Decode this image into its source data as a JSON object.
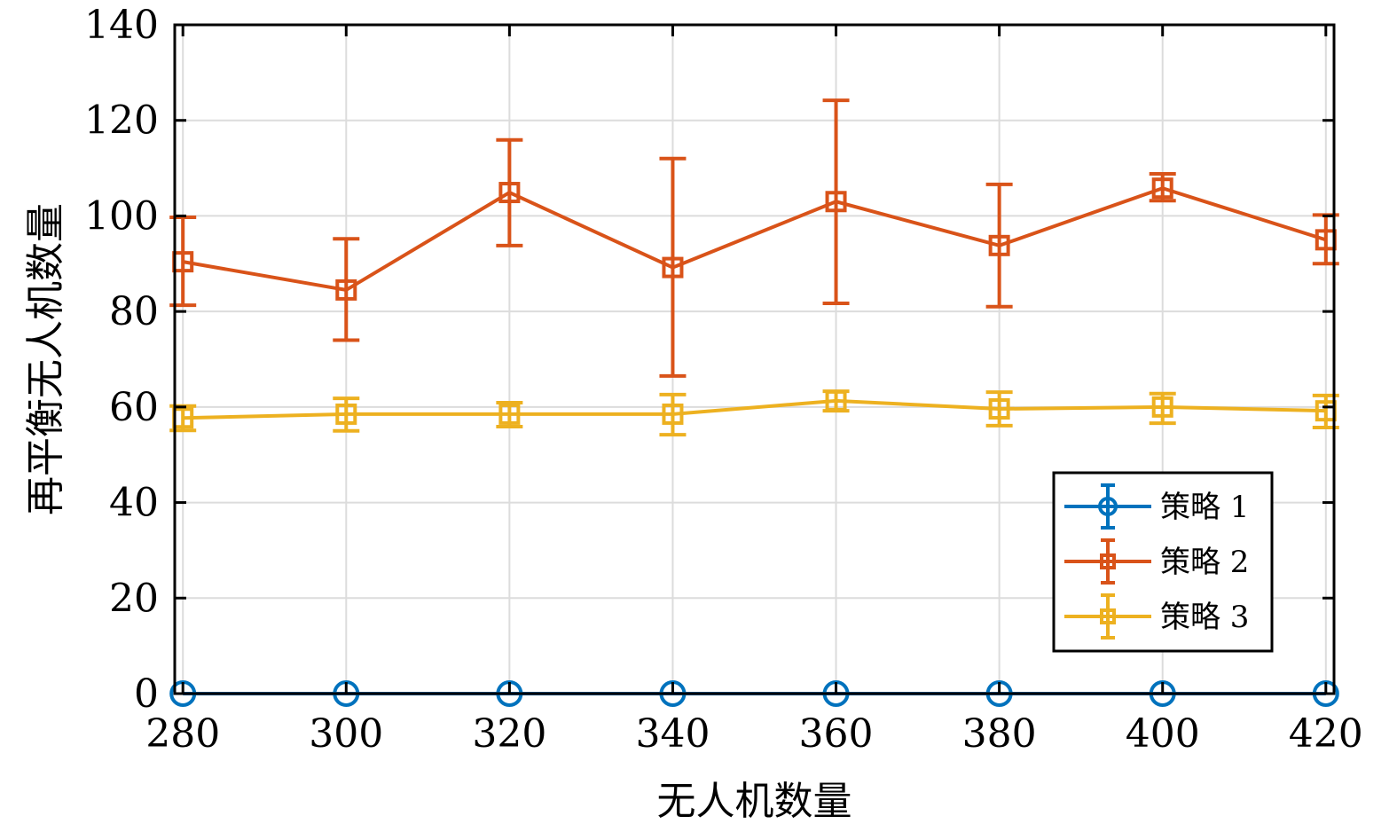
{
  "chart_data": {
    "type": "line",
    "subtype": "errorbar",
    "title": "",
    "xlabel": "无人机数量",
    "ylabel": "再平衡无人机数量",
    "xlim": [
      279,
      421
    ],
    "ylim": [
      0,
      140
    ],
    "grid": true,
    "x": [
      280,
      300,
      320,
      340,
      360,
      380,
      400,
      420
    ],
    "xticks": [
      280,
      300,
      320,
      340,
      360,
      380,
      400,
      420
    ],
    "xtick_labels": [
      "280",
      "300",
      "320",
      "340",
      "360",
      "380",
      "400",
      "420"
    ],
    "yticks": [
      0,
      20,
      40,
      60,
      80,
      100,
      120,
      140
    ],
    "ytick_labels": [
      "0",
      "20",
      "40",
      "60",
      "80",
      "100",
      "120",
      "140"
    ],
    "legend_position": "bottom-right",
    "series": [
      {
        "name": "策略 1",
        "color": "#0072BD",
        "marker": "circle",
        "values": [
          0,
          0,
          0,
          0,
          0,
          0,
          0,
          0
        ],
        "lower": [
          0,
          0,
          0,
          0,
          0,
          0,
          0,
          0
        ],
        "upper": [
          0,
          0,
          0,
          0,
          0,
          0,
          0,
          0
        ]
      },
      {
        "name": "策略 2",
        "color": "#D95319",
        "marker": "square",
        "values": [
          90.4,
          84.5,
          104.9,
          89.2,
          103.0,
          93.8,
          105.8,
          95.0
        ],
        "lower": [
          81.3,
          74.0,
          93.8,
          66.5,
          81.7,
          81.0,
          103.2,
          90.0
        ],
        "upper": [
          99.7,
          95.2,
          115.9,
          112.0,
          124.2,
          106.6,
          108.8,
          100.2
        ]
      },
      {
        "name": "策略 3",
        "color": "#EDB120",
        "marker": "square",
        "values": [
          57.7,
          58.5,
          58.5,
          58.5,
          61.3,
          59.6,
          60.0,
          59.2
        ],
        "lower": [
          55.1,
          55.0,
          55.9,
          54.2,
          59.2,
          56.1,
          56.6,
          55.7
        ],
        "upper": [
          60.2,
          61.8,
          60.9,
          62.6,
          63.3,
          63.1,
          62.8,
          62.4
        ]
      }
    ]
  }
}
